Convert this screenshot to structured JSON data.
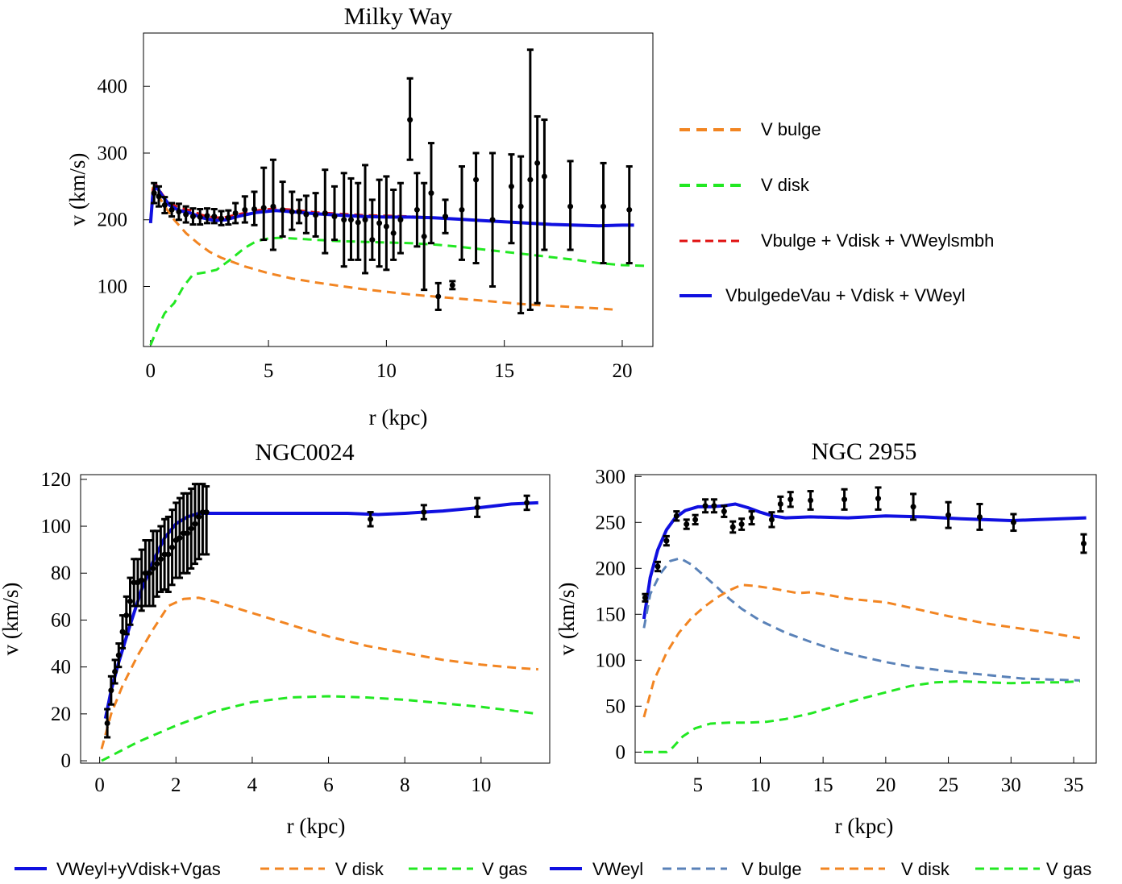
{
  "legend_top": [
    {
      "label": "V bulge",
      "color": "#f28522",
      "dash": "dashed"
    },
    {
      "label": "V disk",
      "color": "#22e822",
      "dash": "dashed"
    },
    {
      "label": "Vbulge + Vdisk + VWeylsmbh",
      "color": "#e01010",
      "dash": "dashed"
    },
    {
      "label": "VbulgedeVau + Vdisk + VWeyl",
      "color": "#1010e0",
      "dash": "solid"
    }
  ],
  "legend_bottom_left": [
    {
      "label": "VWeyl+yVdisk+Vgas",
      "color": "#1010e0",
      "dash": "solid"
    },
    {
      "label": "V disk",
      "color": "#f28522",
      "dash": "dashed"
    },
    {
      "label": "V gas",
      "color": "#22e822",
      "dash": "dashed"
    }
  ],
  "legend_bottom_right": [
    {
      "label": "VWeyl",
      "color": "#1010e0",
      "dash": "solid"
    },
    {
      "label": "V bulge",
      "color": "#5a82b8",
      "dash": "dashed"
    },
    {
      "label": "V disk",
      "color": "#f28522",
      "dash": "dashed"
    },
    {
      "label": "V gas",
      "color": "#22e822",
      "dash": "dashed"
    }
  ],
  "chart_data": [
    {
      "type": "line",
      "title": "Milky Way",
      "xlabel": "r (kpc)",
      "ylabel": "v (km/s)",
      "xlim": [
        -0.3,
        21.3
      ],
      "ylim": [
        10,
        480
      ],
      "xticks": [
        0,
        5,
        10,
        15,
        20
      ],
      "yticks": [
        100,
        200,
        300,
        400
      ],
      "series": [
        {
          "name": "V bulge",
          "color": "#f28522",
          "style": "dashed",
          "x": [
            0,
            0.1,
            0.2,
            0.4,
            0.7,
            1,
            1.5,
            2,
            2.5,
            3,
            4,
            5,
            6,
            7,
            8,
            9,
            10,
            11,
            12,
            13,
            14,
            15,
            16,
            17,
            18,
            19,
            19.8
          ],
          "y": [
            195,
            248,
            244,
            232,
            215,
            200,
            180,
            165,
            152,
            143,
            130,
            120,
            112,
            106,
            101,
            96,
            92,
            88,
            85,
            82,
            79,
            76,
            73,
            71,
            69,
            67,
            65
          ]
        },
        {
          "name": "V disk",
          "color": "#22e822",
          "style": "dashed",
          "x": [
            0,
            0.3,
            0.6,
            1,
            1.4,
            1.8,
            2.3,
            2.8,
            3.3,
            4,
            4.5,
            5,
            5.5,
            6,
            7,
            8,
            9,
            10,
            11,
            12,
            13,
            14,
            15,
            16,
            17,
            18,
            19,
            20,
            21
          ],
          "y": [
            12,
            38,
            60,
            75,
            100,
            118,
            121,
            125,
            138,
            158,
            168,
            172,
            173,
            172,
            170,
            168,
            167,
            166,
            165,
            163,
            160,
            156,
            152,
            148,
            144,
            140,
            135,
            132,
            131
          ]
        },
        {
          "name": "Vbulge + Vdisk + VWeylsmbh",
          "color": "#e01010",
          "style": "dashed",
          "x": [
            0,
            0.1,
            0.25,
            0.5,
            0.8,
            1.2,
            1.7,
            2.2,
            2.7,
            3.2,
            3.7,
            4.5,
            5.3,
            6,
            7,
            8,
            9,
            10,
            11,
            12,
            13,
            14,
            15,
            16,
            17,
            18,
            19,
            20
          ],
          "y": [
            200,
            245,
            252,
            238,
            225,
            218,
            214,
            207,
            203,
            204,
            208,
            214,
            217,
            215,
            211,
            209,
            207,
            206,
            205,
            203,
            201,
            199,
            197,
            195,
            193,
            192,
            191,
            192
          ]
        },
        {
          "name": "VbulgedeVau + Vdisk + VWeyl",
          "color": "#1010e0",
          "style": "solid",
          "x": [
            0,
            0.1,
            0.25,
            0.5,
            0.8,
            1.2,
            1.7,
            2.2,
            2.7,
            3.2,
            3.7,
            4.5,
            5.3,
            6,
            7,
            8,
            9,
            10,
            11,
            12,
            13,
            14,
            15,
            16,
            17,
            18,
            19,
            20,
            20.5
          ],
          "y": [
            195,
            240,
            250,
            236,
            222,
            214,
            210,
            203,
            199,
            200,
            205,
            211,
            214,
            212,
            209,
            207,
            205,
            204,
            204,
            203,
            201,
            199,
            197,
            195,
            193,
            192,
            191,
            192,
            192
          ]
        }
      ],
      "errorbars": {
        "x": [
          0.15,
          0.35,
          0.6,
          0.9,
          1.2,
          1.5,
          1.8,
          2.1,
          2.4,
          2.7,
          3.0,
          3.3,
          3.6,
          4.0,
          4.4,
          4.8,
          5.2,
          5.6,
          6.0,
          6.3,
          6.6,
          7.0,
          7.4,
          7.8,
          8.2,
          8.5,
          8.8,
          9.1,
          9.4,
          9.7,
          10.0,
          10.3,
          10.6,
          11.0,
          11.3,
          11.6,
          11.9,
          12.2,
          12.5,
          12.8,
          13.2,
          13.8,
          14.5,
          15.3,
          15.7,
          16.1,
          16.4,
          16.7,
          17.8,
          19.2,
          20.3
        ],
        "y": [
          240,
          235,
          222,
          215,
          212,
          208,
          205,
          204,
          206,
          205,
          202,
          203,
          210,
          215,
          216,
          218,
          220,
          215,
          212,
          212,
          208,
          207,
          210,
          205,
          200,
          200,
          196,
          200,
          170,
          195,
          190,
          180,
          200,
          350,
          215,
          175,
          240,
          85,
          205,
          102,
          215,
          260,
          200,
          250,
          220,
          260,
          285,
          265,
          220,
          220,
          215
        ],
        "lo": [
          225,
          220,
          210,
          205,
          200,
          196,
          193,
          193,
          195,
          195,
          192,
          193,
          195,
          196,
          192,
          170,
          155,
          175,
          185,
          195,
          180,
          175,
          150,
          170,
          130,
          140,
          140,
          120,
          140,
          130,
          125,
          140,
          150,
          290,
          160,
          95,
          165,
          65,
          180,
          96,
          140,
          135,
          100,
          165,
          60,
          65,
          75,
          155,
          155,
          135,
          135
        ],
        "hi": [
          255,
          250,
          234,
          225,
          224,
          220,
          217,
          216,
          217,
          216,
          213,
          214,
          225,
          235,
          242,
          278,
          290,
          257,
          242,
          230,
          236,
          240,
          275,
          250,
          270,
          262,
          255,
          282,
          230,
          260,
          265,
          245,
          255,
          412,
          270,
          255,
          315,
          105,
          230,
          108,
          280,
          300,
          300,
          298,
          295,
          455,
          355,
          350,
          288,
          285,
          280
        ]
      }
    },
    {
      "type": "line",
      "title": "NGC0024",
      "xlabel": "r (kpc)",
      "ylabel": "v (km/s)",
      "xlim": [
        -0.5,
        11.8
      ],
      "ylim": [
        -1,
        122
      ],
      "xticks": [
        0,
        2,
        4,
        6,
        8,
        10
      ],
      "yticks": [
        0,
        20,
        40,
        60,
        80,
        100,
        120
      ],
      "series": [
        {
          "name": "VWeyl+yVdisk+Vgas",
          "color": "#1010e0",
          "style": "solid",
          "x": [
            0.15,
            0.3,
            0.5,
            0.8,
            1.1,
            1.4,
            1.7,
            2.0,
            2.3,
            2.6,
            2.8,
            3.5,
            4.5,
            5.5,
            6.5,
            7.3,
            8.0,
            9.0,
            10.0,
            10.8,
            11.5
          ],
          "y": [
            18,
            30,
            42,
            58,
            73,
            85,
            95,
            101,
            104,
            105.5,
            105.5,
            105.5,
            105.5,
            105.5,
            105.5,
            105,
            105.5,
            106.5,
            108,
            109.5,
            110
          ]
        },
        {
          "name": "V disk",
          "color": "#f28522",
          "style": "dashed",
          "x": [
            0.05,
            0.3,
            0.6,
            1.0,
            1.4,
            1.8,
            2.2,
            2.6,
            3.0,
            4,
            5,
            6,
            7,
            8,
            9,
            10,
            11,
            11.5
          ],
          "y": [
            5,
            20,
            32,
            45,
            56,
            66,
            69,
            69.5,
            68,
            63,
            58,
            53,
            49,
            46,
            43,
            41,
            39.5,
            39
          ]
        },
        {
          "name": "V gas",
          "color": "#22e822",
          "style": "dashed",
          "x": [
            0.05,
            1,
            2,
            3,
            4,
            5,
            6,
            7,
            8,
            9,
            10,
            11,
            11.5
          ],
          "y": [
            0,
            8,
            15,
            21,
            25,
            27,
            27.5,
            27,
            26,
            24.5,
            23,
            21,
            20
          ]
        }
      ],
      "errorbars": {
        "x": [
          0.2,
          0.3,
          0.4,
          0.5,
          0.6,
          0.7,
          0.8,
          0.9,
          1.0,
          1.1,
          1.2,
          1.3,
          1.4,
          1.5,
          1.6,
          1.7,
          1.8,
          1.9,
          2.0,
          2.1,
          2.2,
          2.3,
          2.4,
          2.5,
          2.6,
          2.7,
          2.8,
          7.1,
          8.5,
          9.9,
          11.2
        ],
        "y": [
          16,
          30,
          38,
          45,
          55,
          62,
          68,
          76,
          76,
          77,
          80,
          80,
          82,
          84,
          86,
          88,
          88,
          91,
          94,
          95,
          97,
          97,
          99,
          101,
          104,
          106,
          106,
          103,
          106,
          108,
          110
        ],
        "lo": [
          10,
          24,
          33,
          40,
          48,
          54,
          58,
          66,
          66,
          64,
          66,
          66,
          66,
          70,
          72,
          73,
          72,
          75,
          78,
          78,
          80,
          80,
          82,
          84,
          86,
          88,
          88,
          100,
          103,
          104,
          107
        ],
        "hi": [
          22,
          36,
          43,
          50,
          62,
          70,
          78,
          86,
          86,
          90,
          94,
          94,
          98,
          98,
          100,
          103,
          104,
          107,
          110,
          112,
          114,
          114,
          116,
          118,
          118,
          118,
          117,
          106,
          109,
          112,
          113
        ]
      }
    },
    {
      "type": "line",
      "title": "NGC 2955",
      "xlabel": "r (kpc)",
      "ylabel": "v (km/s)",
      "xlim": [
        0,
        36.8
      ],
      "ylim": [
        -12,
        302
      ],
      "xticks": [
        5,
        10,
        15,
        20,
        25,
        30,
        35
      ],
      "yticks": [
        0,
        50,
        100,
        150,
        200,
        250,
        300
      ],
      "series": [
        {
          "name": "VWeyl",
          "color": "#1010e0",
          "style": "solid",
          "x": [
            0.7,
            1.2,
            1.8,
            2.5,
            3.2,
            4.0,
            5.0,
            6.0,
            7.0,
            8.0,
            9.0,
            10.0,
            11.0,
            12.0,
            14.0,
            17.0,
            20.0,
            23.0,
            26.0,
            28.0,
            30.0,
            32.0,
            34.0,
            36.0
          ],
          "y": [
            145,
            190,
            220,
            242,
            255,
            263,
            267,
            267,
            268,
            270,
            266,
            261,
            257,
            255,
            256,
            255,
            257,
            256,
            254,
            253,
            252,
            253,
            254,
            255
          ]
        },
        {
          "name": "V bulge",
          "color": "#5a82b8",
          "style": "dashed",
          "x": [
            0.7,
            1.2,
            2.0,
            2.8,
            3.6,
            4.5,
            5.5,
            6.5,
            7.5,
            8.5,
            10,
            12,
            14,
            16,
            18,
            20,
            22,
            25,
            28,
            31,
            33,
            35.5
          ],
          "y": [
            135,
            172,
            194,
            208,
            211,
            204,
            192,
            180,
            167,
            156,
            143,
            130,
            120,
            111,
            104,
            98,
            93,
            88,
            84,
            80,
            79,
            78
          ]
        },
        {
          "name": "V disk",
          "color": "#f28522",
          "style": "dashed",
          "x": [
            0.7,
            1.5,
            2.5,
            3.5,
            4.5,
            5.5,
            6.5,
            7.5,
            8.5,
            9.5,
            11,
            13,
            14,
            15,
            17,
            20,
            22,
            25,
            28,
            31,
            33,
            35.5
          ],
          "y": [
            38,
            78,
            108,
            130,
            146,
            158,
            168,
            176,
            182,
            181,
            178,
            173,
            174,
            172,
            167,
            163,
            157,
            148,
            140,
            134,
            130,
            124
          ]
        },
        {
          "name": "V gas",
          "color": "#22e822",
          "style": "dashed",
          "x": [
            0.7,
            1.5,
            2.5,
            3.0,
            3.8,
            4.8,
            6,
            7.5,
            9,
            10.5,
            12,
            14,
            16,
            18,
            20,
            22,
            24,
            26,
            28,
            30,
            32,
            34,
            35.5
          ],
          "y": [
            0,
            0,
            0,
            5,
            17,
            26,
            31,
            32,
            32,
            33,
            36,
            42,
            50,
            58,
            65,
            72,
            76,
            77,
            76,
            75,
            76,
            76,
            77
          ]
        }
      ],
      "errorbars": {
        "x": [
          0.8,
          1.8,
          2.5,
          3.3,
          4.1,
          4.8,
          5.6,
          6.3,
          7.1,
          7.8,
          8.5,
          9.3,
          10.9,
          11.6,
          12.4,
          14.0,
          16.7,
          19.4,
          22.2,
          25.0,
          27.5,
          30.2,
          35.8
        ],
        "y": [
          168,
          202,
          230,
          257,
          248,
          253,
          268,
          268,
          262,
          245,
          248,
          255,
          253,
          270,
          275,
          274,
          275,
          276,
          267,
          258,
          256,
          250,
          227
        ],
        "lo": [
          164,
          197,
          225,
          252,
          243,
          248,
          261,
          261,
          256,
          239,
          242,
          248,
          245,
          262,
          267,
          264,
          264,
          264,
          253,
          244,
          242,
          241,
          217
        ],
        "hi": [
          172,
          207,
          235,
          262,
          253,
          258,
          275,
          275,
          268,
          251,
          254,
          262,
          261,
          278,
          283,
          284,
          286,
          288,
          281,
          272,
          270,
          259,
          237
        ]
      }
    }
  ]
}
